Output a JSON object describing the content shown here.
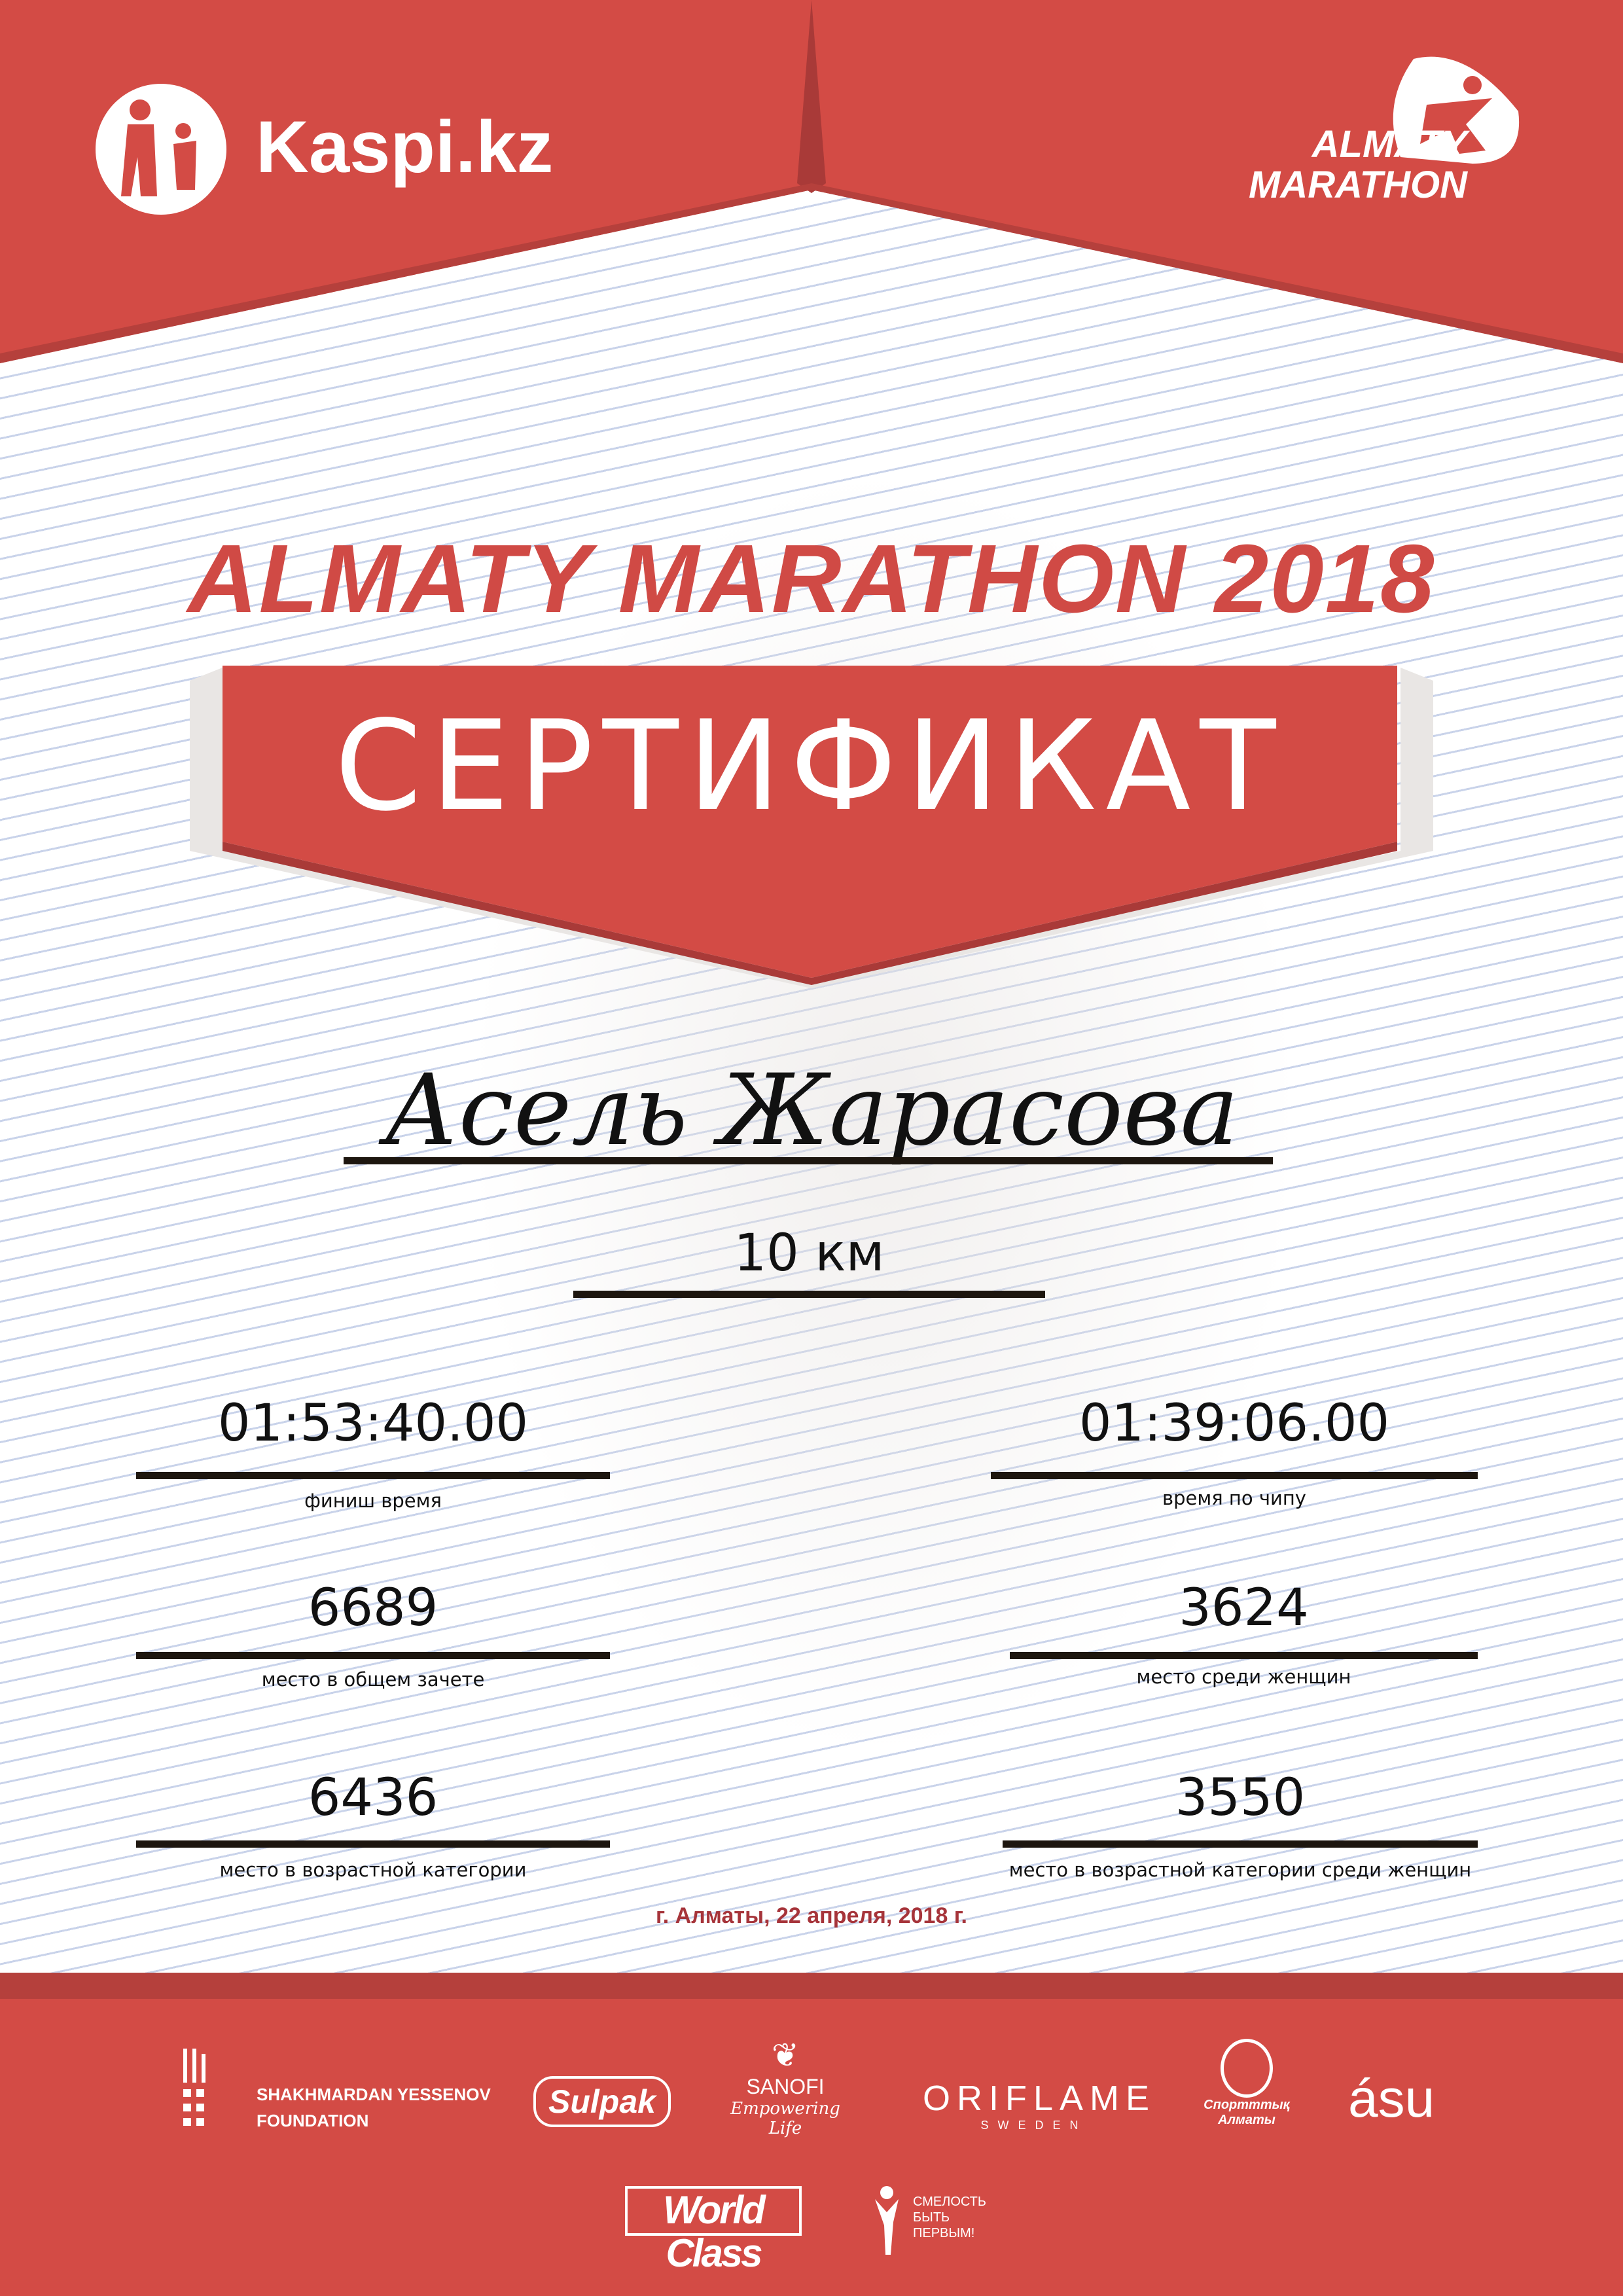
{
  "header": {
    "sponsor_logo": "Kaspi.kz",
    "event_logo_line1": "ALMATY",
    "event_logo_line2": "MARATHON"
  },
  "title": "ALMATY MARATHON 2018",
  "certificate_label": "СЕРТИФИКАТ",
  "participant_name": "Асель Жарасова",
  "distance": "10 км",
  "results": [
    {
      "value": "01:53:40.00",
      "label": "финиш время"
    },
    {
      "value": "01:39:06.00",
      "label": "время по чипу"
    },
    {
      "value": "6689",
      "label": "место в общем зачете"
    },
    {
      "value": "3624",
      "label": "место среди женщин"
    },
    {
      "value": "6436",
      "label": "место в возрастной категории"
    },
    {
      "value": "3550",
      "label": "место в возрастной категории среди женщин"
    }
  ],
  "date_place": "г. Алматы, 22 апреля, 2018 г.",
  "sponsors": {
    "yessenov_line1": "SHAKHMARDAN YESSENOV",
    "yessenov_line2": "FOUNDATION",
    "sulpak": "Sulpak",
    "sanofi": "SANOFI",
    "sanofi_tagline": "Empowering Life",
    "oriflame": "ORIFLAME",
    "oriflame_sub": "SWEDEN",
    "sport_almaty": "Спортттық Алматы",
    "asu": "ásu",
    "worldclass": "World Class",
    "fund_line1": "СМЕЛОСТЬ",
    "fund_line2": "БЫТЬ",
    "fund_line3": "ПЕРВЫМ!"
  },
  "colors": {
    "brand_red": "#d34b45",
    "dark_red": "#a6343a",
    "line_blue": "#c9d3ea"
  }
}
